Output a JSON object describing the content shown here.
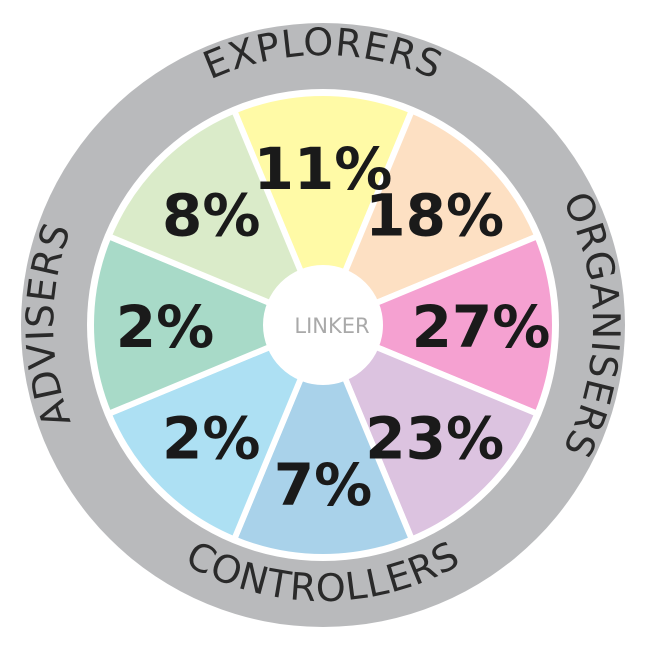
{
  "center_label": "LINKER",
  "ring_labels": [
    {
      "id": "explorers",
      "text": "EXPLORERS"
    },
    {
      "id": "organisers",
      "text": "ORGANISERS"
    },
    {
      "id": "controllers",
      "text": "CONTROLLERS"
    },
    {
      "id": "advisers",
      "text": "ADVISERS"
    }
  ],
  "segments": [
    {
      "name": "yellow",
      "value": "11%",
      "color": "#fffaa6"
    },
    {
      "name": "orange",
      "value": "18%",
      "color": "#fde0c3"
    },
    {
      "name": "pink",
      "value": "27%",
      "color": "#f5a1d1"
    },
    {
      "name": "mauve",
      "value": "23%",
      "color": "#dcc3e0"
    },
    {
      "name": "blue",
      "value": "7%",
      "color": "#a9d2ea"
    },
    {
      "name": "cyan",
      "value": "2%",
      "color": "#ade0f3"
    },
    {
      "name": "teal",
      "value": "2%",
      "color": "#a8dac8"
    },
    {
      "name": "green",
      "value": "8%",
      "color": "#daebc9"
    }
  ],
  "colors": {
    "outer_ring": "#b9babc",
    "hub": "#ffffff",
    "divider": "#ffffff"
  }
}
